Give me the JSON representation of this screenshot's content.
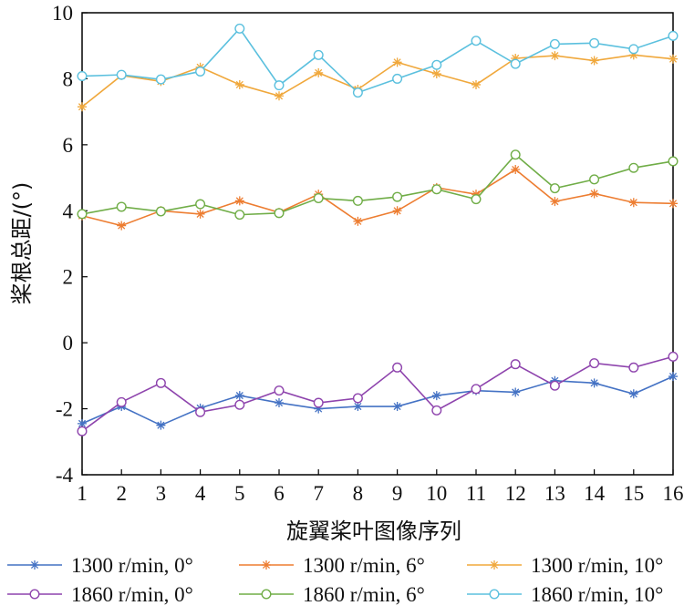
{
  "chart_data": {
    "type": "line",
    "title": "",
    "xlabel": "旋翼桨叶图像序列",
    "ylabel": "桨根总距/(°)",
    "x": [
      1,
      2,
      3,
      4,
      5,
      6,
      7,
      8,
      9,
      10,
      11,
      12,
      13,
      14,
      15,
      16
    ],
    "xlim": [
      1,
      16
    ],
    "ylim": [
      -4,
      10
    ],
    "x_ticks": [
      "1",
      "2",
      "3",
      "4",
      "5",
      "6",
      "7",
      "8",
      "9",
      "10",
      "11",
      "12",
      "13",
      "14",
      "15",
      "16"
    ],
    "y_ticks": [
      "-4",
      "-2",
      "0",
      "2",
      "4",
      "6",
      "8",
      "10"
    ],
    "y_tick_values": [
      -4,
      -2,
      0,
      2,
      4,
      6,
      8,
      10
    ],
    "grid": false,
    "legend_position": "bottom",
    "series": [
      {
        "name": "1300 r/min, 0°",
        "color": "#4472C4",
        "marker": "asterisk",
        "values": [
          -2.45,
          -1.93,
          -2.5,
          -1.98,
          -1.6,
          -1.82,
          -2.0,
          -1.93,
          -1.93,
          -1.6,
          -1.45,
          -1.5,
          -1.15,
          -1.22,
          -1.55,
          -1.02
        ]
      },
      {
        "name": "1300 r/min, 6°",
        "color": "#ED7D31",
        "marker": "asterisk",
        "values": [
          3.85,
          3.55,
          4.0,
          3.9,
          4.3,
          3.95,
          4.5,
          3.68,
          4.0,
          4.7,
          4.5,
          5.25,
          4.28,
          4.52,
          4.25,
          4.22
        ]
      },
      {
        "name": "1300 r/min, 10°",
        "color": "#F0A83C",
        "marker": "asterisk",
        "values": [
          7.15,
          8.1,
          7.92,
          8.35,
          7.82,
          7.48,
          8.18,
          7.68,
          8.5,
          8.15,
          7.82,
          8.62,
          8.7,
          8.55,
          8.72,
          8.6
        ]
      },
      {
        "name": "1860 r/min, 0°",
        "color": "#8E44AD",
        "marker": "circle",
        "values": [
          -2.68,
          -1.8,
          -1.22,
          -2.1,
          -1.88,
          -1.45,
          -1.82,
          -1.68,
          -0.75,
          -2.05,
          -1.4,
          -0.65,
          -1.3,
          -0.62,
          -0.75,
          -0.42
        ]
      },
      {
        "name": "1860 r/min, 6°",
        "color": "#70AD47",
        "marker": "circle",
        "values": [
          3.9,
          4.12,
          3.98,
          4.2,
          3.88,
          3.93,
          4.38,
          4.3,
          4.42,
          4.65,
          4.35,
          5.7,
          4.68,
          4.95,
          5.3,
          5.5
        ]
      },
      {
        "name": "1860 r/min, 10°",
        "color": "#5BC0DE",
        "marker": "circle",
        "values": [
          8.08,
          8.12,
          7.98,
          8.22,
          9.52,
          7.8,
          8.72,
          7.58,
          8.0,
          8.42,
          9.15,
          8.45,
          9.05,
          9.08,
          8.9,
          9.3
        ]
      }
    ]
  }
}
